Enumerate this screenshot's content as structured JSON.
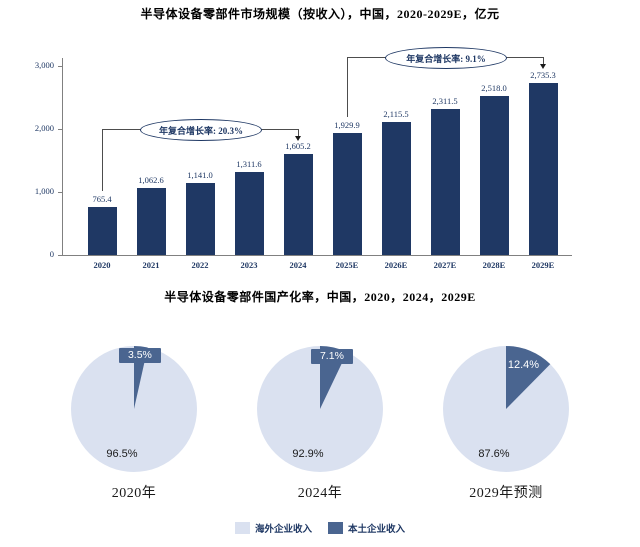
{
  "page": {
    "background": "#ffffff"
  },
  "colors": {
    "bar": "#1f3864",
    "navy_text": "#1f3864",
    "domestic": "#4a6590",
    "overseas": "#dae1f0",
    "axis": "#808080",
    "connector": "#4d4d4d"
  },
  "chart_data": [
    {
      "type": "bar",
      "title": "半导体设备零部件市场规模（按收入），中国，2020-2029E，亿元",
      "unit": "亿元",
      "categories": [
        "2020",
        "2021",
        "2022",
        "2023",
        "2024",
        "2025E",
        "2026E",
        "2027E",
        "2028E",
        "2029E"
      ],
      "values": [
        765.4,
        1062.6,
        1141.0,
        1311.6,
        1605.2,
        1929.9,
        2115.5,
        2311.5,
        2518.0,
        2735.3
      ],
      "value_labels": [
        "765.4",
        "1,062.6",
        "1,141.0",
        "1,311.6",
        "1,605.2",
        "1,929.9",
        "2,115.5",
        "2,311.5",
        "2,518.0",
        "2,735.3"
      ],
      "ylim": [
        0,
        3000
      ],
      "y_ticks": [
        {
          "value": 0,
          "label": "0"
        },
        {
          "value": 1000,
          "label": "1,000"
        },
        {
          "value": 2000,
          "label": "2,000"
        },
        {
          "value": 3000,
          "label": "3,000"
        }
      ],
      "grid": false,
      "annotations": [
        {
          "label": "年复合增长率: 20.3%",
          "from_index": 0,
          "to_index": 4,
          "level_value": 2000
        },
        {
          "label": "年复合增长率: 9.1%",
          "from_index": 5,
          "to_index": 9,
          "level_value": 3135
        }
      ]
    },
    {
      "type": "pie",
      "title": "半导体设备零部件国产化率，中国，2020，2024，2029E",
      "pies": [
        {
          "caption": "2020年",
          "slices": [
            {
              "name": "本土企业收入",
              "pct": 3.5,
              "label": "3.5%",
              "label_style": "boxed"
            },
            {
              "name": "海外企业收入",
              "pct": 96.5,
              "label": "96.5%",
              "label_style": "plain"
            }
          ]
        },
        {
          "caption": "2024年",
          "slices": [
            {
              "name": "本土企业收入",
              "pct": 7.1,
              "label": "7.1%",
              "label_style": "boxed"
            },
            {
              "name": "海外企业收入",
              "pct": 92.9,
              "label": "92.9%",
              "label_style": "plain"
            }
          ]
        },
        {
          "caption": "2029年预测",
          "slices": [
            {
              "name": "本土企业收入",
              "pct": 12.4,
              "label": "12.4%",
              "label_style": "inside"
            },
            {
              "name": "海外企业收入",
              "pct": 87.6,
              "label": "87.6%",
              "label_style": "plain"
            }
          ]
        }
      ],
      "legend": [
        {
          "name": "海外企业收入",
          "color_key": "overseas"
        },
        {
          "name": "本土企业收入",
          "color_key": "domestic"
        }
      ],
      "legend_position": "bottom"
    }
  ]
}
